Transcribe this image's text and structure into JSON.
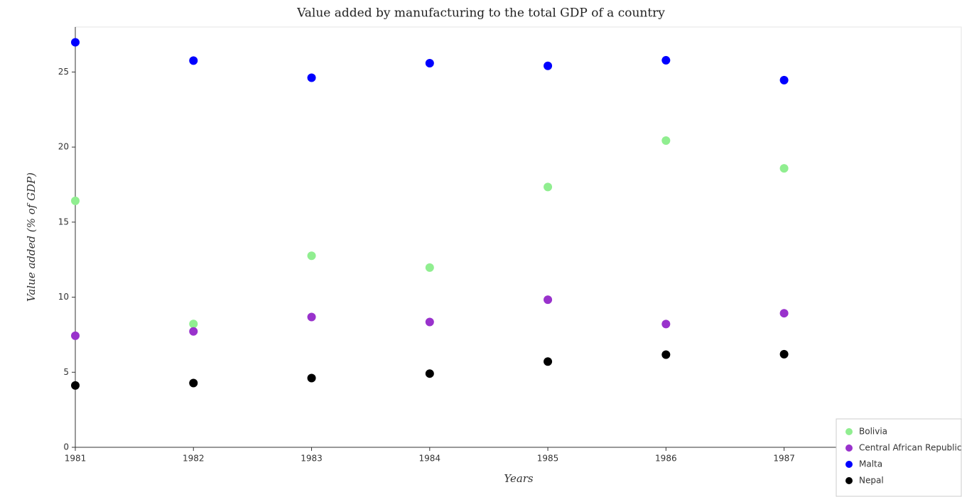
{
  "chart_data": {
    "type": "scatter",
    "title": "Value added by manufacturing to the total GDP of a country",
    "x_label": "Years",
    "y_label": "Value added (% of GDP)",
    "x": [
      1981,
      1982,
      1983,
      1984,
      1985,
      1986,
      1987
    ],
    "xlim": [
      1981,
      1988.5
    ],
    "xticks": [
      1981,
      1982,
      1983,
      1984,
      1985,
      1986,
      1987
    ],
    "ylim": [
      0,
      28
    ],
    "yticks": [
      0,
      5,
      10,
      15,
      20,
      25
    ],
    "grid": false,
    "legend": "lower right",
    "series": [
      {
        "name": "Bolivia",
        "color": "#90ee90",
        "values": [
          16.42,
          8.22,
          12.76,
          11.97,
          17.34,
          20.43,
          18.58
        ]
      },
      {
        "name": "Central African Republic",
        "color": "#9932cc",
        "values": [
          7.43,
          7.72,
          8.68,
          8.35,
          9.83,
          8.21,
          8.93
        ]
      },
      {
        "name": "Malta",
        "color": "#0000ff",
        "values": [
          26.98,
          25.76,
          24.62,
          25.59,
          25.41,
          25.78,
          24.46
        ]
      },
      {
        "name": "Nepal",
        "color": "#000000",
        "values": [
          4.12,
          4.28,
          4.61,
          4.91,
          5.71,
          6.17,
          6.2
        ]
      }
    ]
  }
}
